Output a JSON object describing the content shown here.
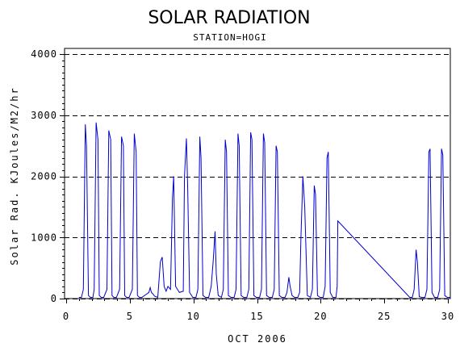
{
  "chart_data": {
    "type": "line",
    "title": "SOLAR RADIATION",
    "subtitle": "STATION=HOGI",
    "xlabel": "OCT 2006",
    "ylabel": "Solar Rad. KJoules/M2/hr",
    "xlim": [
      0,
      30.2
    ],
    "ylim": [
      0,
      4000
    ],
    "x_ticks": [
      0,
      5,
      10,
      15,
      20,
      25,
      30
    ],
    "y_ticks": [
      0,
      1000,
      2000,
      3000,
      4000
    ],
    "grid": "horizontal-dashed",
    "series_color": "#0000cc",
    "series": [
      {
        "x": [
          1.0,
          1.2,
          1.35,
          1.5,
          1.6,
          1.75,
          1.9,
          2.1,
          2.2,
          2.35,
          2.5,
          2.6,
          2.75,
          2.95,
          3.2,
          3.35,
          3.5,
          3.6,
          3.75,
          3.95,
          4.2,
          4.35,
          4.5,
          4.6,
          4.75,
          4.95,
          5.2,
          5.35,
          5.5,
          5.6,
          5.75,
          5.95,
          6.5,
          6.6,
          6.7,
          6.8,
          6.95,
          7.2,
          7.4,
          7.55,
          7.7,
          7.85,
          8.0,
          8.2,
          8.35,
          8.45,
          8.6,
          8.9,
          9.2,
          9.3,
          9.45,
          9.55,
          9.7,
          9.95,
          10.2,
          10.35,
          10.5,
          10.6,
          10.75,
          10.95,
          11.2,
          11.4,
          11.55,
          11.7,
          11.8,
          11.95,
          12.2,
          12.35,
          12.5,
          12.6,
          12.75,
          12.95,
          13.2,
          13.35,
          13.5,
          13.6,
          13.75,
          13.95,
          14.2,
          14.35,
          14.5,
          14.6,
          14.75,
          14.95,
          15.2,
          15.35,
          15.5,
          15.6,
          15.75,
          15.95,
          16.2,
          16.35,
          16.5,
          16.6,
          16.75,
          16.95,
          17.2,
          17.35,
          17.5,
          17.6,
          17.75,
          17.95,
          18.2,
          18.35,
          18.45,
          18.6,
          18.75,
          18.95,
          19.2,
          19.35,
          19.5,
          19.6,
          19.75,
          19.95,
          20.2,
          20.35,
          20.5,
          20.6,
          20.75,
          20.95,
          21.2,
          21.3,
          21.35,
          27.0,
          27.2,
          27.35,
          27.5,
          27.6,
          27.75,
          27.95,
          28.2,
          28.35,
          28.5,
          28.6,
          28.75,
          28.95,
          29.2,
          29.35,
          29.5,
          29.6,
          29.75,
          29.95,
          30.2
        ],
        "y": [
          20,
          20,
          150,
          2850,
          2500,
          50,
          20,
          20,
          150,
          2880,
          2600,
          50,
          20,
          20,
          150,
          2750,
          2600,
          50,
          20,
          20,
          150,
          2650,
          2500,
          50,
          20,
          20,
          150,
          2700,
          2400,
          50,
          20,
          20,
          100,
          180,
          100,
          80,
          40,
          20,
          600,
          680,
          200,
          120,
          200,
          150,
          1650,
          2000,
          200,
          100,
          120,
          2000,
          2620,
          1800,
          100,
          20,
          20,
          150,
          2650,
          2300,
          50,
          20,
          20,
          200,
          600,
          1100,
          400,
          50,
          20,
          150,
          2600,
          2400,
          50,
          20,
          20,
          150,
          2700,
          2500,
          50,
          20,
          20,
          150,
          2720,
          2600,
          50,
          20,
          20,
          150,
          2700,
          2550,
          50,
          20,
          20,
          150,
          2500,
          2400,
          50,
          20,
          20,
          100,
          350,
          200,
          50,
          20,
          20,
          100,
          1000,
          2000,
          1500,
          50,
          20,
          150,
          1850,
          1700,
          50,
          20,
          20,
          200,
          2300,
          2400,
          100,
          20,
          20,
          200,
          1270,
          20,
          20,
          150,
          800,
          600,
          30,
          20,
          20,
          150,
          2400,
          2450,
          100,
          20,
          20,
          150,
          2450,
          2350,
          50,
          20,
          20
        ]
      }
    ]
  }
}
